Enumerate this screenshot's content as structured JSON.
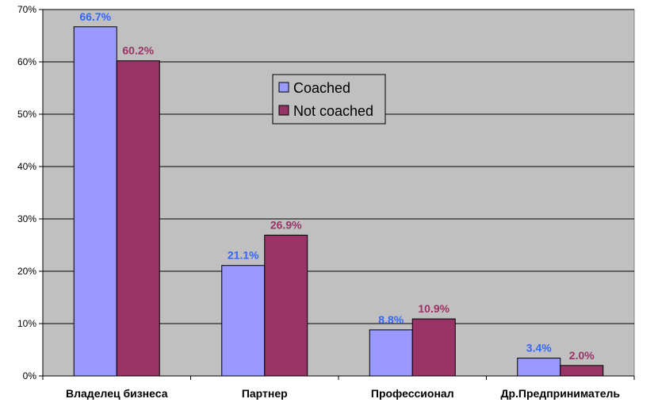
{
  "chart_data": {
    "type": "bar",
    "categories": [
      "Владелец бизнеса",
      "Партнер",
      "Профессионал",
      "Др.Предприниматель"
    ],
    "series": [
      {
        "name": "Coached",
        "values": [
          66.7,
          21.1,
          8.8,
          3.4
        ],
        "labels": [
          "66.7%",
          "21.1%",
          "8.8%",
          "3.4%"
        ],
        "color": "#9999ff",
        "label_color": "#3366ff"
      },
      {
        "name": "Not coached",
        "values": [
          60.2,
          26.9,
          10.9,
          2.0
        ],
        "labels": [
          "60.2%",
          "26.9%",
          "10.9%",
          "2.0%"
        ],
        "color": "#993366",
        "label_color": "#993366"
      }
    ],
    "ylim": [
      0,
      70
    ],
    "yticks": [
      "0%",
      "10%",
      "20%",
      "30%",
      "40%",
      "50%",
      "60%",
      "70%"
    ],
    "grid": true,
    "plot_background": "#c0c0c0",
    "legend": "top-center"
  }
}
